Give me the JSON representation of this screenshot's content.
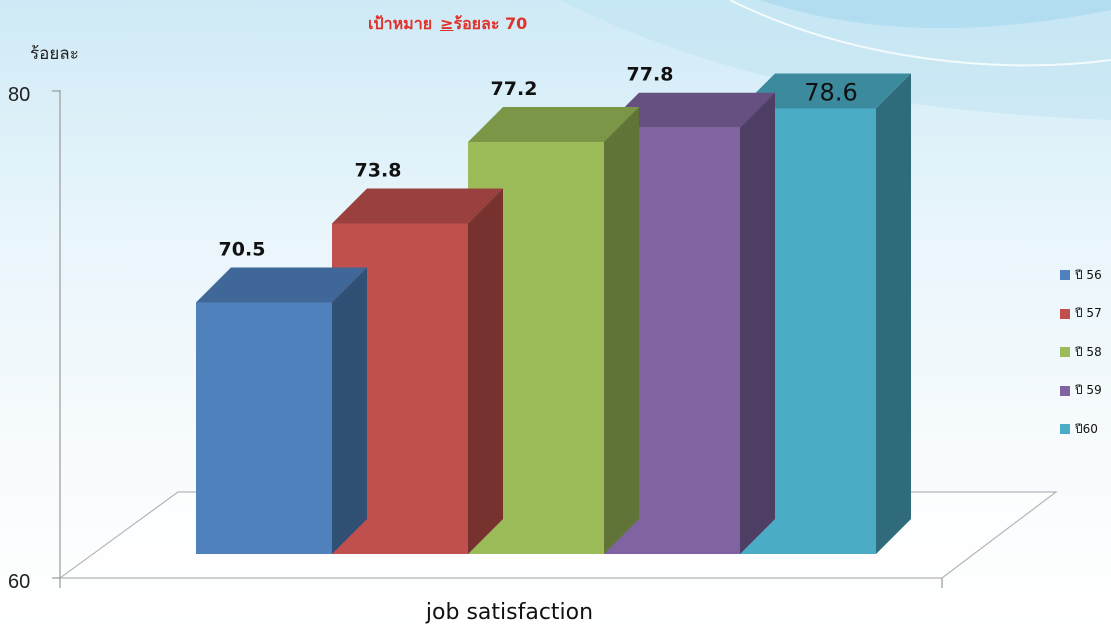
{
  "title": "เป้าหมาย",
  "target_prefix": "≥",
  "target_label": "ร้อยละ 70",
  "ylabel": "ร้อยละ",
  "xlabel": "job satisfaction",
  "chart_data": {
    "type": "bar",
    "categories": [
      "job satisfaction"
    ],
    "series": [
      {
        "name": "ปี 56",
        "value": 70.5,
        "color": "#4f81bd"
      },
      {
        "name": "ปี 57",
        "value": 73.8,
        "color": "#c0504d"
      },
      {
        "name": "ปี 58",
        "value": 77.2,
        "color": "#9bbb59"
      },
      {
        "name": "ปี 59",
        "value": 77.8,
        "color": "#8064a2"
      },
      {
        "name": "ปี60",
        "value": 78.6,
        "color": "#4bacc6"
      }
    ],
    "ylim": [
      60,
      80
    ],
    "yticks": [
      "60",
      "80"
    ],
    "legend": "right"
  }
}
